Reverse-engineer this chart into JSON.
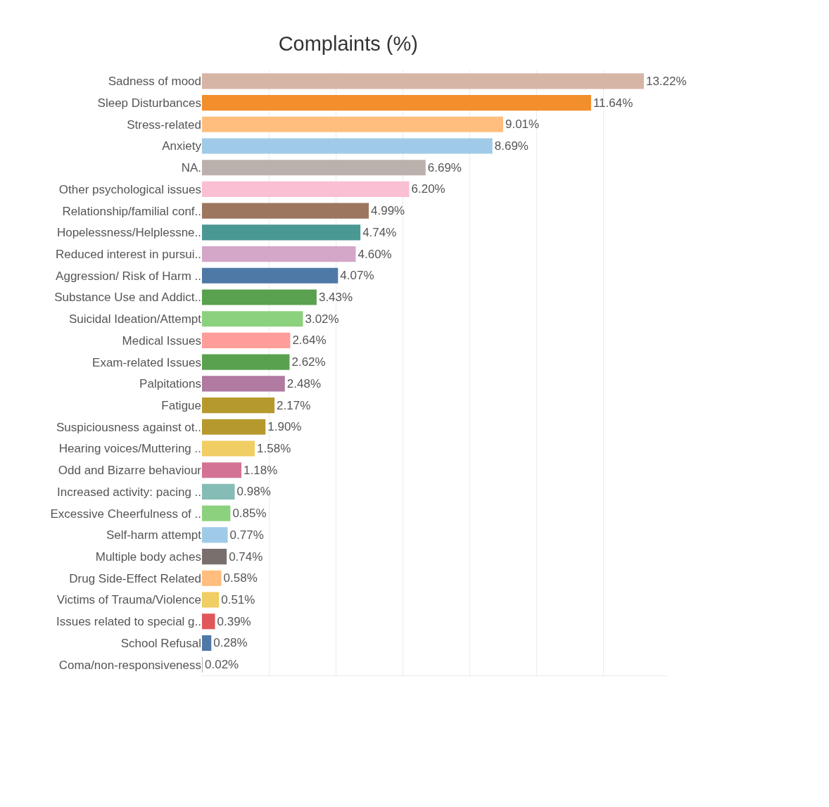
{
  "chart_data": {
    "type": "bar",
    "orientation": "horizontal",
    "title": "Complaints (%)",
    "categories": [
      "Sadness of mood",
      "Sleep Disturbances",
      "Stress-related",
      "Anxiety",
      "NA.",
      "Other psychological issues",
      "Relationship/familial conf..",
      "Hopelessness/Helplessne..",
      "Reduced interest in pursui..",
      "Aggression/ Risk of Harm ..",
      "Substance Use and Addict..",
      "Suicidal Ideation/Attempt",
      "Medical Issues",
      "Exam-related Issues",
      "Palpitations",
      "Fatigue",
      "Suspiciousness against ot..",
      "Hearing voices/Muttering ..",
      "Odd and Bizarre behaviour",
      "Increased activity: pacing ..",
      "Excessive Cheerfulness of ..",
      "Self-harm attempt",
      "Multiple body aches",
      "Drug Side-Effect Related",
      "Victims of Trauma/Violence",
      "Issues related to special g..",
      "School Refusal",
      "Coma/non-responsiveness"
    ],
    "values": [
      13.22,
      11.64,
      9.01,
      8.69,
      6.69,
      6.2,
      4.99,
      4.74,
      4.6,
      4.07,
      3.43,
      3.02,
      2.64,
      2.62,
      2.48,
      2.17,
      1.9,
      1.58,
      1.18,
      0.98,
      0.85,
      0.77,
      0.74,
      0.58,
      0.51,
      0.39,
      0.28,
      0.02
    ],
    "value_labels": [
      "13.22%",
      "11.64%",
      "9.01%",
      "8.69%",
      "6.69%",
      "6.20%",
      "4.99%",
      "4.74%",
      "4.60%",
      "4.07%",
      "3.43%",
      "3.02%",
      "2.64%",
      "2.62%",
      "2.48%",
      "2.17%",
      "1.90%",
      "1.58%",
      "1.18%",
      "0.98%",
      "0.85%",
      "0.77%",
      "0.74%",
      "0.58%",
      "0.51%",
      "0.39%",
      "0.28%",
      "0.02%"
    ],
    "colors": [
      "#d7b5a6",
      "#f28e2b",
      "#ffbe7d",
      "#a0cbe8",
      "#bab0ac",
      "#fabfd2",
      "#9d7660",
      "#499894",
      "#d4a6c8",
      "#4e79a7",
      "#59a14f",
      "#8cd17d",
      "#ff9d9a",
      "#59a14f",
      "#b07aa1",
      "#b6992d",
      "#b6992d",
      "#f1ce63",
      "#d37295",
      "#86bcb6",
      "#8cd17d",
      "#a0cbe8",
      "#79706e",
      "#ffbe7d",
      "#f1ce63",
      "#e15759",
      "#4e79a7",
      "#bab0ac"
    ],
    "grid": "x",
    "tick_labels": "y"
  }
}
